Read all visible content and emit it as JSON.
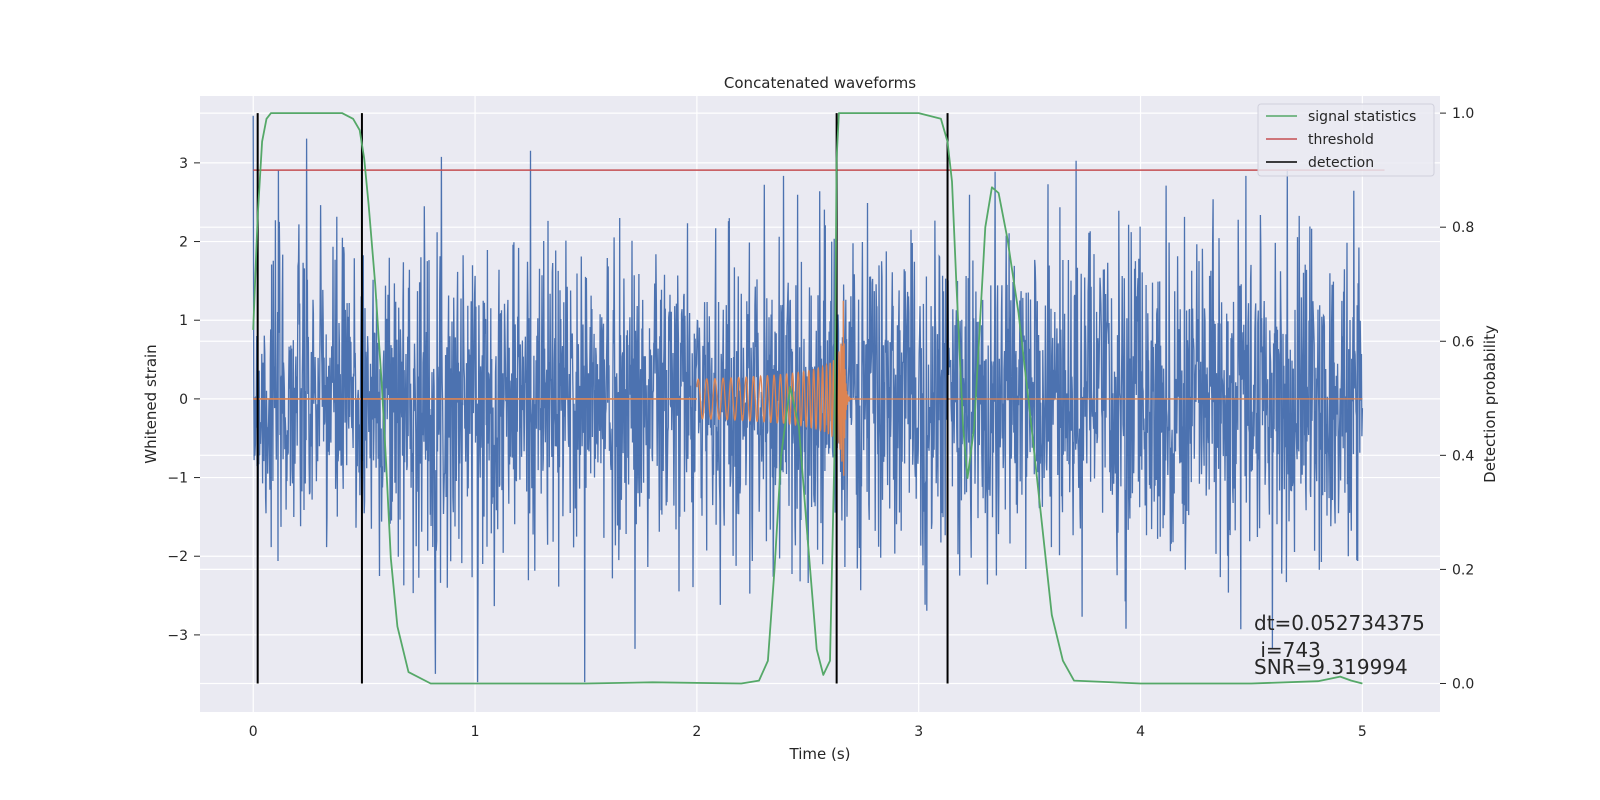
{
  "chart_data": {
    "type": "line",
    "title": "Concatenated waveforms",
    "xlabel": "Time (s)",
    "ylabel": "Whitened strain",
    "ylabel_right": "Detection probability",
    "xlim": [
      -0.24,
      5.35
    ],
    "ylim": [
      -3.98,
      3.85
    ],
    "ylim_right": [
      -0.05,
      1.03
    ],
    "xticks": [
      0,
      1,
      2,
      3,
      4,
      5
    ],
    "yticks": [
      -3,
      -2,
      -1,
      0,
      1,
      2,
      3
    ],
    "yticks_right": [
      0.0,
      0.2,
      0.4,
      0.6,
      0.8,
      1.0
    ],
    "xtick_labels": [
      "0",
      "1",
      "2",
      "3",
      "4",
      "5"
    ],
    "ytick_labels": [
      "−3",
      "−2",
      "−1",
      "0",
      "1",
      "2",
      "3"
    ],
    "ytick_right_labels": [
      "0.0",
      "0.2",
      "0.4",
      "0.6",
      "0.8",
      "1.0"
    ],
    "grid": true,
    "legend_position": "top-right",
    "legend": [
      "signal statistics",
      "threshold",
      "detection"
    ],
    "colors": {
      "strain": "#4c72b0",
      "template": "#dd8452",
      "signal_statistics": "#55a868",
      "threshold": "#c44e52",
      "detection": "#000000",
      "axes_bg": "#eaeaf2",
      "grid": "#ffffff"
    },
    "strain": {
      "x_range": [
        0.0,
        5.0
      ],
      "amplitude_typical": 1.0,
      "amplitude_peak": 3.6
    },
    "template": {
      "x_range": [
        2.0,
        2.7
      ],
      "merger_time": 2.66,
      "peak_amplitude": 1.35
    },
    "threshold": {
      "x": [
        0.0,
        5.1
      ],
      "value_right": 0.9
    },
    "detections": [
      0.02,
      0.49,
      2.63,
      3.13
    ],
    "signal_statistics": {
      "x": [
        0.0,
        0.02,
        0.04,
        0.06,
        0.08,
        0.12,
        0.4,
        0.45,
        0.48,
        0.5,
        0.52,
        0.55,
        0.58,
        0.6,
        0.62,
        0.65,
        0.7,
        0.8,
        1.5,
        1.8,
        2.2,
        2.28,
        2.32,
        2.35,
        2.38,
        2.42,
        2.46,
        2.5,
        2.54,
        2.57,
        2.6,
        2.62,
        2.63,
        2.64,
        2.66,
        2.7,
        2.8,
        3.0,
        3.1,
        3.13,
        3.15,
        3.17,
        3.2,
        3.22,
        3.25,
        3.3,
        3.33,
        3.36,
        3.4,
        3.45,
        3.5,
        3.55,
        3.6,
        3.65,
        3.7,
        4.0,
        4.5,
        4.8,
        4.9,
        4.95,
        5.0
      ],
      "y": [
        0.62,
        0.82,
        0.95,
        0.99,
        1.0,
        1.0,
        1.0,
        0.99,
        0.97,
        0.92,
        0.84,
        0.7,
        0.52,
        0.38,
        0.22,
        0.1,
        0.02,
        0.0,
        0.0,
        0.002,
        0.0,
        0.005,
        0.04,
        0.2,
        0.4,
        0.52,
        0.45,
        0.25,
        0.06,
        0.015,
        0.04,
        0.4,
        0.92,
        1.0,
        1.0,
        1.0,
        1.0,
        1.0,
        0.99,
        0.95,
        0.88,
        0.7,
        0.45,
        0.36,
        0.45,
        0.8,
        0.87,
        0.86,
        0.78,
        0.65,
        0.48,
        0.3,
        0.12,
        0.04,
        0.005,
        0.0,
        0.0,
        0.004,
        0.012,
        0.005,
        0.0
      ]
    }
  },
  "annotations": {
    "dt": "dt=0.052734375",
    "i": " i=743",
    "snr": "SNR=9.319994"
  }
}
